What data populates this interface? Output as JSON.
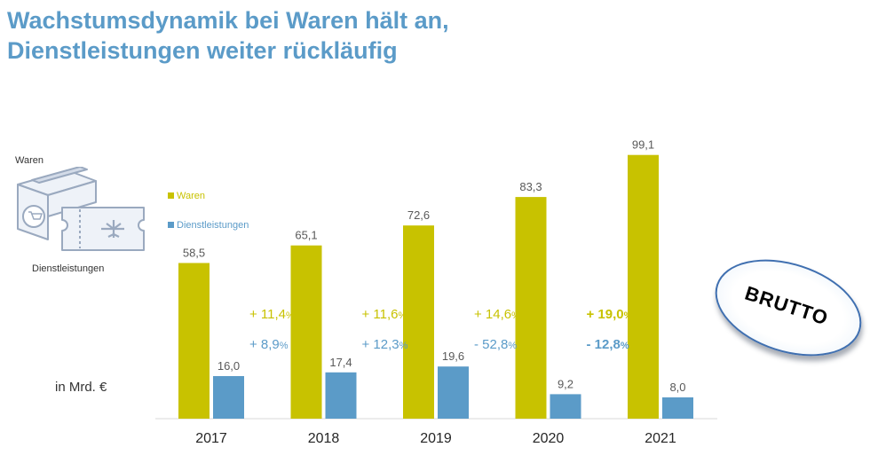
{
  "title": {
    "line1": "Wachstumsdynamik bei Waren hält an,",
    "line2": "Dienstleistungen weiter rückläufig"
  },
  "icon_labels": {
    "waren": "Waren",
    "dienstleistungen": "Dienstleistungen"
  },
  "unit_label": "in Mrd. €",
  "stamp_text": "BRUTTO",
  "colors": {
    "waren": "#c8c200",
    "dienstleistungen": "#5b9bc8",
    "title": "#5b9bc8"
  },
  "chart_data": {
    "type": "bar",
    "title": "Wachstumsdynamik bei Waren hält an, Dienstleistungen weiter rückläufig",
    "ylabel": "in Mrd. €",
    "xlabel": "",
    "ylim": [
      0,
      105
    ],
    "grid": false,
    "legend": "top-left",
    "categories": [
      "2017",
      "2018",
      "2019",
      "2020",
      "2021"
    ],
    "series": [
      {
        "name": "Waren",
        "values": [
          58.5,
          65.1,
          72.6,
          83.3,
          99.1
        ],
        "labels": [
          "58,5",
          "65,1",
          "72,6",
          "83,3",
          "99,1"
        ],
        "color": "#c8c200"
      },
      {
        "name": "Dienstleistungen",
        "values": [
          16.0,
          17.4,
          19.6,
          9.2,
          8.0
        ],
        "labels": [
          "16,0",
          "17,4",
          "19,6",
          "9,2",
          "8,0"
        ],
        "color": "#5b9bc8"
      }
    ],
    "growth_annotations": {
      "waren": [
        {
          "value": "+ 11,4",
          "unit": "%",
          "bold": false
        },
        {
          "value": "+ 11,6",
          "unit": "%",
          "bold": false
        },
        {
          "value": "+ 14,6",
          "unit": "%",
          "bold": false
        },
        {
          "value": "+ 19,0",
          "unit": "%",
          "bold": true
        }
      ],
      "dienstleistungen": [
        {
          "value": "+ 8,9",
          "unit": "%",
          "bold": false
        },
        {
          "value": "+ 12,3",
          "unit": "%",
          "bold": false
        },
        {
          "value": "- 52,8",
          "unit": "%",
          "bold": false
        },
        {
          "value": "- 12,8",
          "unit": "%",
          "bold": true
        }
      ]
    }
  }
}
